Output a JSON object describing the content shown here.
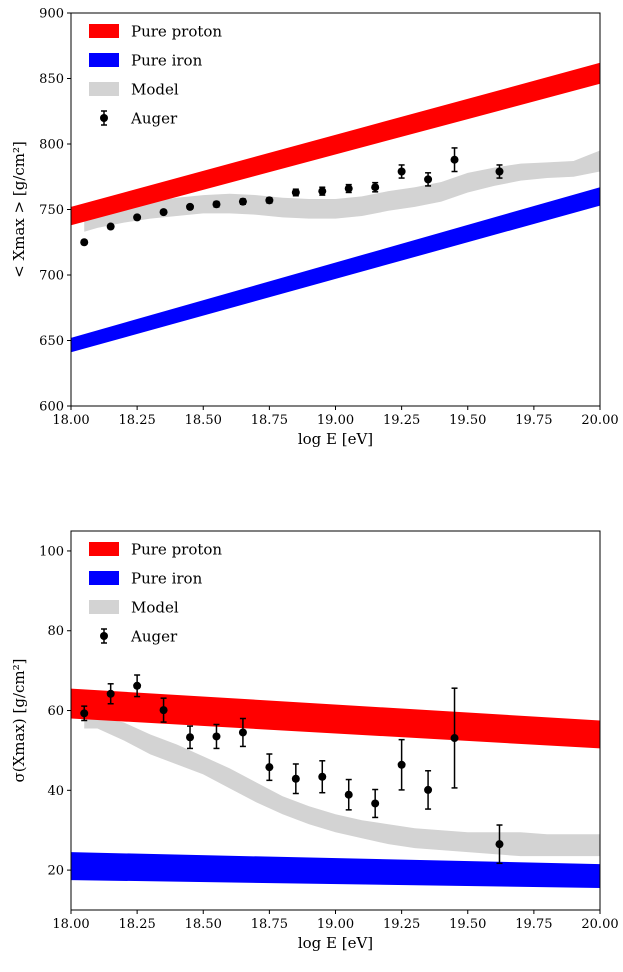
{
  "chart_data": [
    {
      "type": "area",
      "title": "",
      "xlabel": "log E [eV]",
      "ylabel": "< Xmax > [g/cm²]",
      "xlim": [
        18.0,
        20.0
      ],
      "ylim": [
        600,
        900
      ],
      "xticks": [
        18.0,
        18.25,
        18.5,
        18.75,
        19.0,
        19.25,
        19.5,
        19.75,
        20.0
      ],
      "xtick_labels": [
        "18.00",
        "18.25",
        "18.50",
        "18.75",
        "19.00",
        "19.25",
        "19.50",
        "19.75",
        "20.00"
      ],
      "yticks": [
        600,
        650,
        700,
        750,
        800,
        850,
        900
      ],
      "ytick_labels": [
        "600",
        "650",
        "700",
        "750",
        "800",
        "850",
        "900"
      ],
      "grid": false,
      "legend_position": "top-left",
      "legend": [
        "Pure proton",
        "Pure iron",
        "Model",
        "Auger"
      ],
      "colors": {
        "proton": "#ff0000",
        "iron": "#0000ff",
        "model": "#d3d3d3",
        "auger": "#000000"
      },
      "series": [
        {
          "name": "Pure proton",
          "type": "band",
          "x": [
            18.0,
            20.0
          ],
          "low": [
            738,
            846
          ],
          "high": [
            752,
            862
          ]
        },
        {
          "name": "Pure iron",
          "type": "band",
          "x": [
            18.0,
            20.0
          ],
          "low": [
            641,
            753
          ],
          "high": [
            652,
            767
          ]
        },
        {
          "name": "Model",
          "type": "band",
          "x": [
            18.05,
            18.1,
            18.2,
            18.3,
            18.4,
            18.5,
            18.6,
            18.7,
            18.8,
            18.9,
            19.0,
            19.1,
            19.2,
            19.3,
            19.4,
            19.5,
            19.6,
            19.7,
            19.8,
            19.9,
            20.0
          ],
          "low": [
            733,
            736,
            740,
            743,
            745,
            747,
            747,
            746,
            744,
            743,
            743,
            745,
            749,
            752,
            756,
            763,
            768,
            772,
            774,
            775,
            779
          ],
          "high": [
            746,
            749,
            753,
            756,
            759,
            761,
            762,
            761,
            759,
            758,
            758,
            760,
            764,
            767,
            771,
            778,
            782,
            785,
            786,
            787,
            795
          ]
        },
        {
          "name": "Auger",
          "type": "scatter",
          "x": [
            18.05,
            18.15,
            18.25,
            18.35,
            18.45,
            18.55,
            18.65,
            18.75,
            18.85,
            18.95,
            19.05,
            19.15,
            19.25,
            19.35,
            19.45,
            19.62
          ],
          "y": [
            725,
            737,
            744,
            748,
            752,
            754,
            756,
            757,
            763,
            764,
            766,
            767,
            779,
            773,
            788,
            779
          ],
          "err": [
            1.5,
            1.5,
            1.5,
            1.5,
            1.5,
            2,
            2,
            2,
            2.5,
            3,
            3,
            3.5,
            5,
            5,
            9,
            5
          ]
        }
      ]
    },
    {
      "type": "area",
      "title": "",
      "xlabel": "log E [eV]",
      "ylabel": "σ(Xmax) [g/cm²]",
      "xlim": [
        18.0,
        20.0
      ],
      "ylim": [
        10,
        105
      ],
      "xticks": [
        18.0,
        18.25,
        18.5,
        18.75,
        19.0,
        19.25,
        19.5,
        19.75,
        20.0
      ],
      "xtick_labels": [
        "18.00",
        "18.25",
        "18.50",
        "18.75",
        "19.00",
        "19.25",
        "19.50",
        "19.75",
        "20.00"
      ],
      "yticks": [
        20,
        40,
        60,
        80,
        100
      ],
      "ytick_labels": [
        "20",
        "40",
        "60",
        "80",
        "100"
      ],
      "grid": false,
      "legend_position": "top-left",
      "legend": [
        "Pure proton",
        "Pure iron",
        "Model",
        "Auger"
      ],
      "colors": {
        "proton": "#ff0000",
        "iron": "#0000ff",
        "model": "#d3d3d3",
        "auger": "#000000"
      },
      "series": [
        {
          "name": "Pure proton",
          "type": "band",
          "x": [
            18.0,
            20.0
          ],
          "low": [
            58,
            50.5
          ],
          "high": [
            65.5,
            57.5
          ]
        },
        {
          "name": "Pure iron",
          "type": "band",
          "x": [
            18.0,
            20.0
          ],
          "low": [
            17.5,
            15.5
          ],
          "high": [
            24.5,
            21.5
          ]
        },
        {
          "name": "Model",
          "type": "band",
          "x": [
            18.05,
            18.1,
            18.2,
            18.3,
            18.4,
            18.5,
            18.6,
            18.7,
            18.8,
            18.9,
            19.0,
            19.1,
            19.2,
            19.3,
            19.4,
            19.5,
            19.6,
            19.7,
            19.8,
            19.9,
            20.0
          ],
          "low": [
            55.5,
            55.5,
            52.5,
            49,
            46.5,
            44,
            40.5,
            37,
            34,
            31.5,
            29.5,
            28,
            26.5,
            25.5,
            25,
            24.5,
            24,
            23.5,
            23.5,
            23.5,
            23.5
          ],
          "high": [
            59,
            58.5,
            57,
            54,
            51.5,
            48.5,
            45.5,
            42,
            38.5,
            36,
            34,
            32.5,
            31.5,
            30.5,
            30,
            29.5,
            29.5,
            29.5,
            29,
            29,
            29
          ]
        },
        {
          "name": "Auger",
          "type": "scatter",
          "x": [
            18.05,
            18.15,
            18.25,
            18.35,
            18.45,
            18.55,
            18.65,
            18.75,
            18.85,
            18.95,
            19.05,
            19.15,
            19.25,
            19.35,
            19.45,
            19.62
          ],
          "y": [
            59.3,
            64.2,
            66.2,
            60.1,
            53.3,
            53.5,
            54.5,
            45.8,
            42.9,
            43.4,
            38.9,
            36.7,
            46.4,
            40.1,
            53.1,
            26.5
          ],
          "err": [
            1.8,
            2.5,
            2.7,
            3,
            2.8,
            3,
            3.5,
            3.3,
            3.7,
            4,
            3.8,
            3.5,
            6.3,
            4.8,
            12.5,
            4.8
          ]
        }
      ]
    }
  ]
}
